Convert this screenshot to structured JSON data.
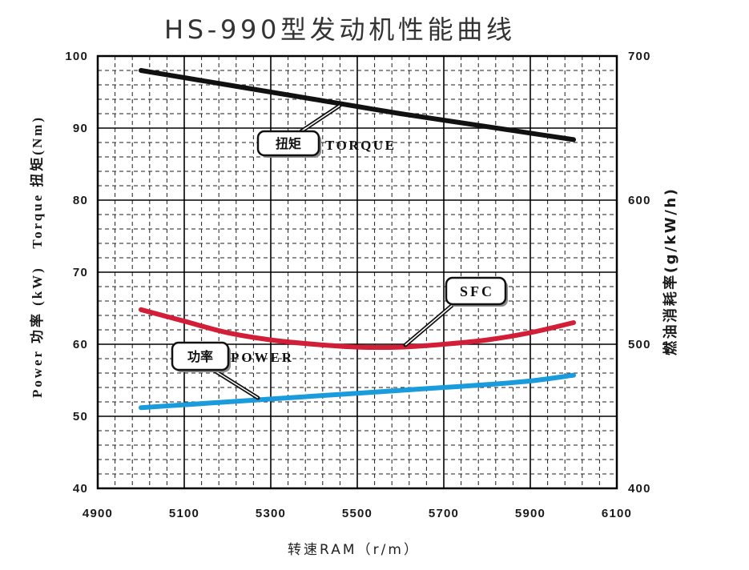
{
  "chart_data": {
    "type": "line",
    "title": "HS-990型发动机性能曲线",
    "xlabel": "转速RAM（r/m）",
    "ylabel": "Power 功率 (kW)   Torque 扭矩(Nm)",
    "y2label": "燃油消耗率(g/kW/h)",
    "xlim": [
      4900,
      6100
    ],
    "ylim": [
      40,
      100
    ],
    "y2lim": [
      400,
      700
    ],
    "xticks": [
      4900,
      5100,
      5300,
      5500,
      5700,
      5900,
      6100
    ],
    "yticks": [
      40,
      50,
      60,
      70,
      80,
      90,
      100
    ],
    "y2ticks": [
      400,
      500,
      600,
      700
    ],
    "grid": true,
    "x": [
      5000,
      5100,
      5200,
      5300,
      5400,
      5500,
      5600,
      5700,
      5800,
      5900,
      6000
    ],
    "series": [
      {
        "name": "TORQUE",
        "label_cn": "扭矩",
        "axis": "left",
        "color": "#111111",
        "values": [
          98,
          97,
          96,
          95,
          94,
          93,
          92,
          91.1,
          90.2,
          89.3,
          88.4
        ]
      },
      {
        "name": "SFC",
        "axis": "right",
        "color": "#d21e36",
        "values": [
          524,
          516,
          508,
          503,
          500,
          498,
          498,
          500,
          503,
          508,
          515
        ]
      },
      {
        "name": "POWER",
        "label_cn": "功率",
        "axis": "left",
        "color": "#1a9bdc",
        "values": [
          51.2,
          51.6,
          52.0,
          52.4,
          52.8,
          53.2,
          53.6,
          54.0,
          54.4,
          54.9,
          55.7
        ]
      }
    ]
  }
}
